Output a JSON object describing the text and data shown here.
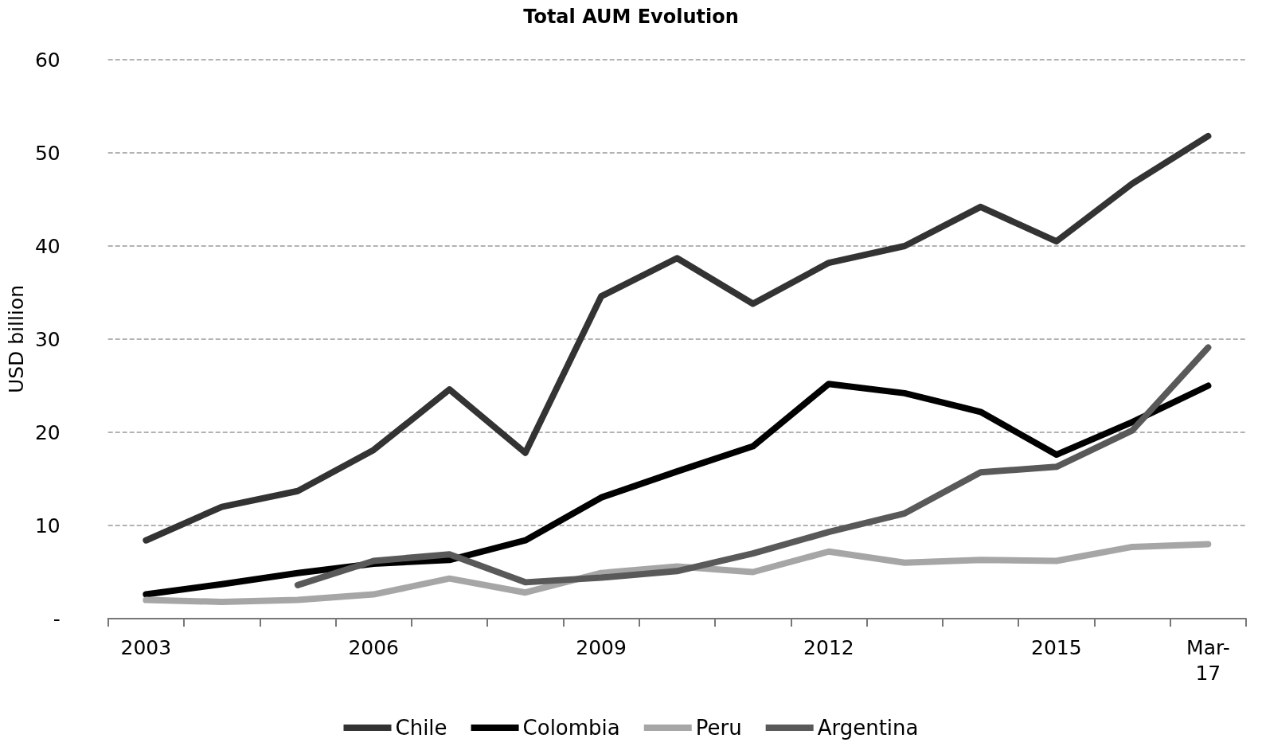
{
  "chart_data": {
    "type": "line",
    "title": "Total AUM Evolution",
    "ylabel": "USD billion",
    "categories": [
      "2003",
      null,
      null,
      "2006",
      null,
      null,
      "2009",
      null,
      null,
      "2012",
      null,
      null,
      "2015",
      null,
      "Mar-\n17"
    ],
    "series": [
      {
        "name": "Chile",
        "color": "#333333",
        "values": [
          8.4,
          12.0,
          13.7,
          18.1,
          24.6,
          17.8,
          34.6,
          38.7,
          33.8,
          38.2,
          40.0,
          44.2,
          40.5,
          46.7,
          51.8
        ]
      },
      {
        "name": "Colombia",
        "color": "#000000",
        "values": [
          2.6,
          3.7,
          4.9,
          5.9,
          6.3,
          8.4,
          13.0,
          15.8,
          18.5,
          25.2,
          24.2,
          22.2,
          17.6,
          21.1,
          25.0
        ]
      },
      {
        "name": "Peru",
        "color": "#a6a6a6",
        "values": [
          2.0,
          1.8,
          2.0,
          2.6,
          4.3,
          2.8,
          4.9,
          5.6,
          5.0,
          7.2,
          6.0,
          6.3,
          6.2,
          7.7,
          8.0
        ]
      },
      {
        "name": "Argentina",
        "color": "#595959",
        "values": [
          null,
          null,
          3.6,
          6.2,
          6.9,
          3.9,
          4.4,
          5.1,
          7.0,
          9.3,
          11.3,
          15.7,
          16.3,
          20.2,
          29.1
        ]
      }
    ],
    "ylim": [
      0,
      60
    ],
    "yticks": [
      {
        "value": 0,
        "label": "-"
      },
      10,
      20,
      30,
      40,
      50,
      60
    ],
    "grid": "y",
    "legend": "bottom",
    "marker": "none",
    "line_style": "solid"
  }
}
